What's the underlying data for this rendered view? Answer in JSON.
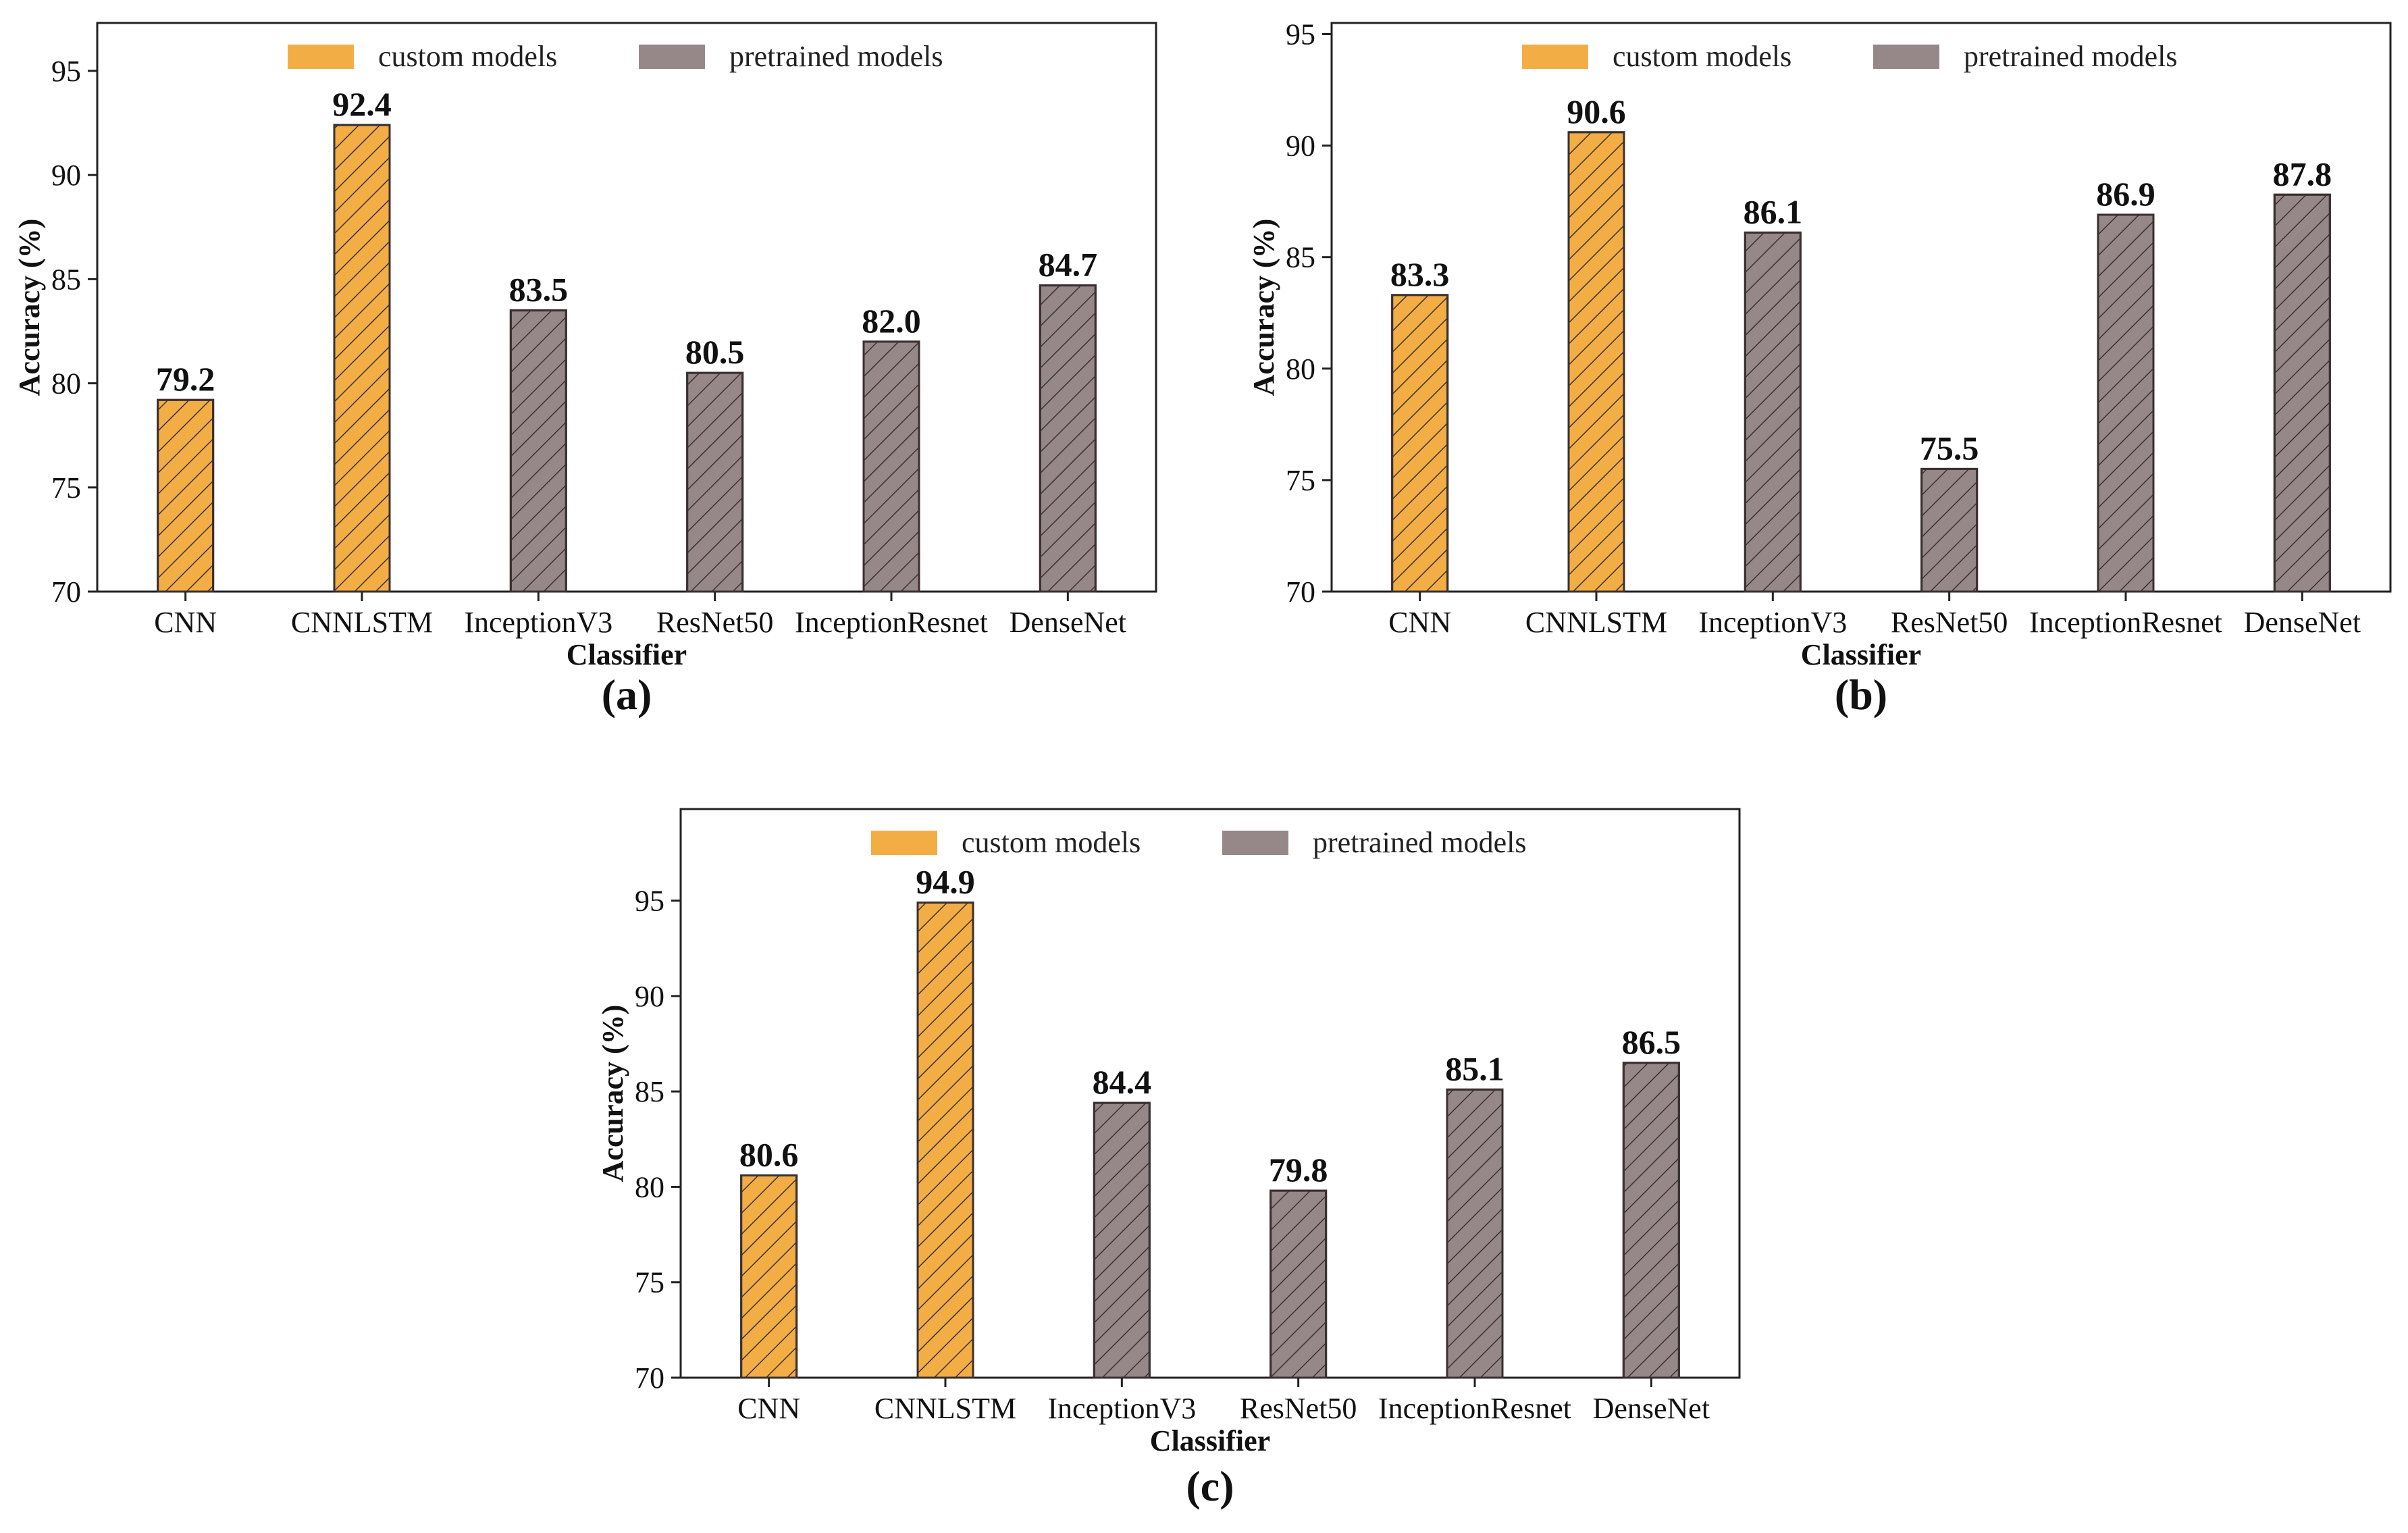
{
  "chart_data": [
    {
      "type": "bar",
      "panel": "(a)",
      "categories": [
        "CNN",
        "CNNLSTM",
        "InceptionV3",
        "ResNet50",
        "InceptionResnet",
        "DenseNet"
      ],
      "values": [
        79.2,
        92.4,
        83.5,
        80.5,
        82.0,
        84.7
      ],
      "value_labels": [
        "79.2",
        "92.4",
        "83.5",
        "80.5",
        "82.0",
        "84.7"
      ],
      "groups": [
        "custom",
        "custom",
        "pretrained",
        "pretrained",
        "pretrained",
        "pretrained"
      ],
      "xlabel": "Classifier",
      "ylabel": "Accuracy (%)",
      "ylim": [
        70,
        97.3
      ],
      "yticks": [
        70,
        75,
        80,
        85,
        90,
        95
      ],
      "legend_position": "top-center",
      "grid": false
    },
    {
      "type": "bar",
      "panel": "(b)",
      "categories": [
        "CNN",
        "CNNLSTM",
        "InceptionV3",
        "ResNet50",
        "InceptionResnet",
        "DenseNet"
      ],
      "values": [
        83.3,
        90.6,
        86.1,
        75.5,
        86.9,
        87.8
      ],
      "value_labels": [
        "83.3",
        "90.6",
        "86.1",
        "75.5",
        "86.9",
        "87.8"
      ],
      "groups": [
        "custom",
        "custom",
        "pretrained",
        "pretrained",
        "pretrained",
        "pretrained"
      ],
      "xlabel": "Classifier",
      "ylabel": "Accuracy (%)",
      "ylim": [
        70,
        95.5
      ],
      "yticks": [
        70,
        75,
        80,
        85,
        90,
        95
      ],
      "legend_position": "top-center",
      "grid": false
    },
    {
      "type": "bar",
      "panel": "(c)",
      "categories": [
        "CNN",
        "CNNLSTM",
        "InceptionV3",
        "ResNet50",
        "InceptionResnet",
        "DenseNet"
      ],
      "values": [
        80.6,
        94.9,
        84.4,
        79.8,
        85.1,
        86.5
      ],
      "value_labels": [
        "80.6",
        "94.9",
        "84.4",
        "79.8",
        "85.1",
        "86.5"
      ],
      "groups": [
        "custom",
        "custom",
        "pretrained",
        "pretrained",
        "pretrained",
        "pretrained"
      ],
      "xlabel": "Classifier",
      "ylabel": "Accuracy (%)",
      "ylim": [
        70,
        99.8
      ],
      "yticks": [
        70,
        75,
        80,
        85,
        90,
        95
      ],
      "legend_position": "top-center",
      "grid": false
    }
  ],
  "legend": {
    "custom": {
      "label": "custom models",
      "color": "#f2ae45"
    },
    "pretrained": {
      "label": "pretrained models",
      "color": "#968888"
    }
  },
  "hatch_color": "#3a3030"
}
